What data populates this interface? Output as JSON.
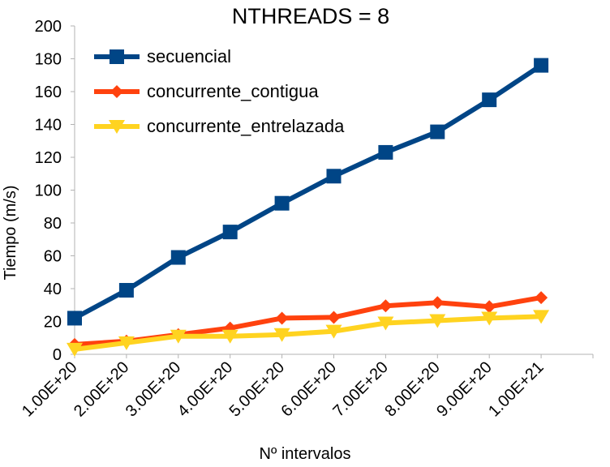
{
  "chart_data": {
    "type": "line",
    "title": "NTHREADS = 8",
    "xlabel": "Nº intervalos",
    "ylabel": "Tiempo (m/s)",
    "ylim": [
      0,
      200
    ],
    "y_ticks": [
      0,
      20,
      40,
      60,
      80,
      100,
      120,
      140,
      160,
      180,
      200
    ],
    "categories": [
      "1.00E+20",
      "2.00E+20",
      "3.00E+20",
      "4.00E+20",
      "5.00E+20",
      "6.00E+20",
      "7.00E+20",
      "8.00E+20",
      "9.00E+20",
      "1.00E+21"
    ],
    "grid": false,
    "legend_position": "top-left",
    "series": [
      {
        "name": "secuencial",
        "color": "#004586",
        "marker": "square",
        "values": [
          22,
          39,
          59,
          74.5,
          92,
          108.5,
          123,
          135.5,
          155,
          176
        ]
      },
      {
        "name": "concurrente_contigua",
        "color": "#ff420e",
        "marker": "diamond",
        "values": [
          6,
          8,
          12,
          16,
          22,
          22.5,
          29.5,
          31.5,
          29,
          34.5
        ]
      },
      {
        "name": "concurrente_entrelazada",
        "color": "#ffd320",
        "marker": "triangle-down",
        "values": [
          3,
          7,
          11,
          11,
          12,
          14,
          19,
          20.5,
          22,
          23
        ]
      }
    ]
  }
}
